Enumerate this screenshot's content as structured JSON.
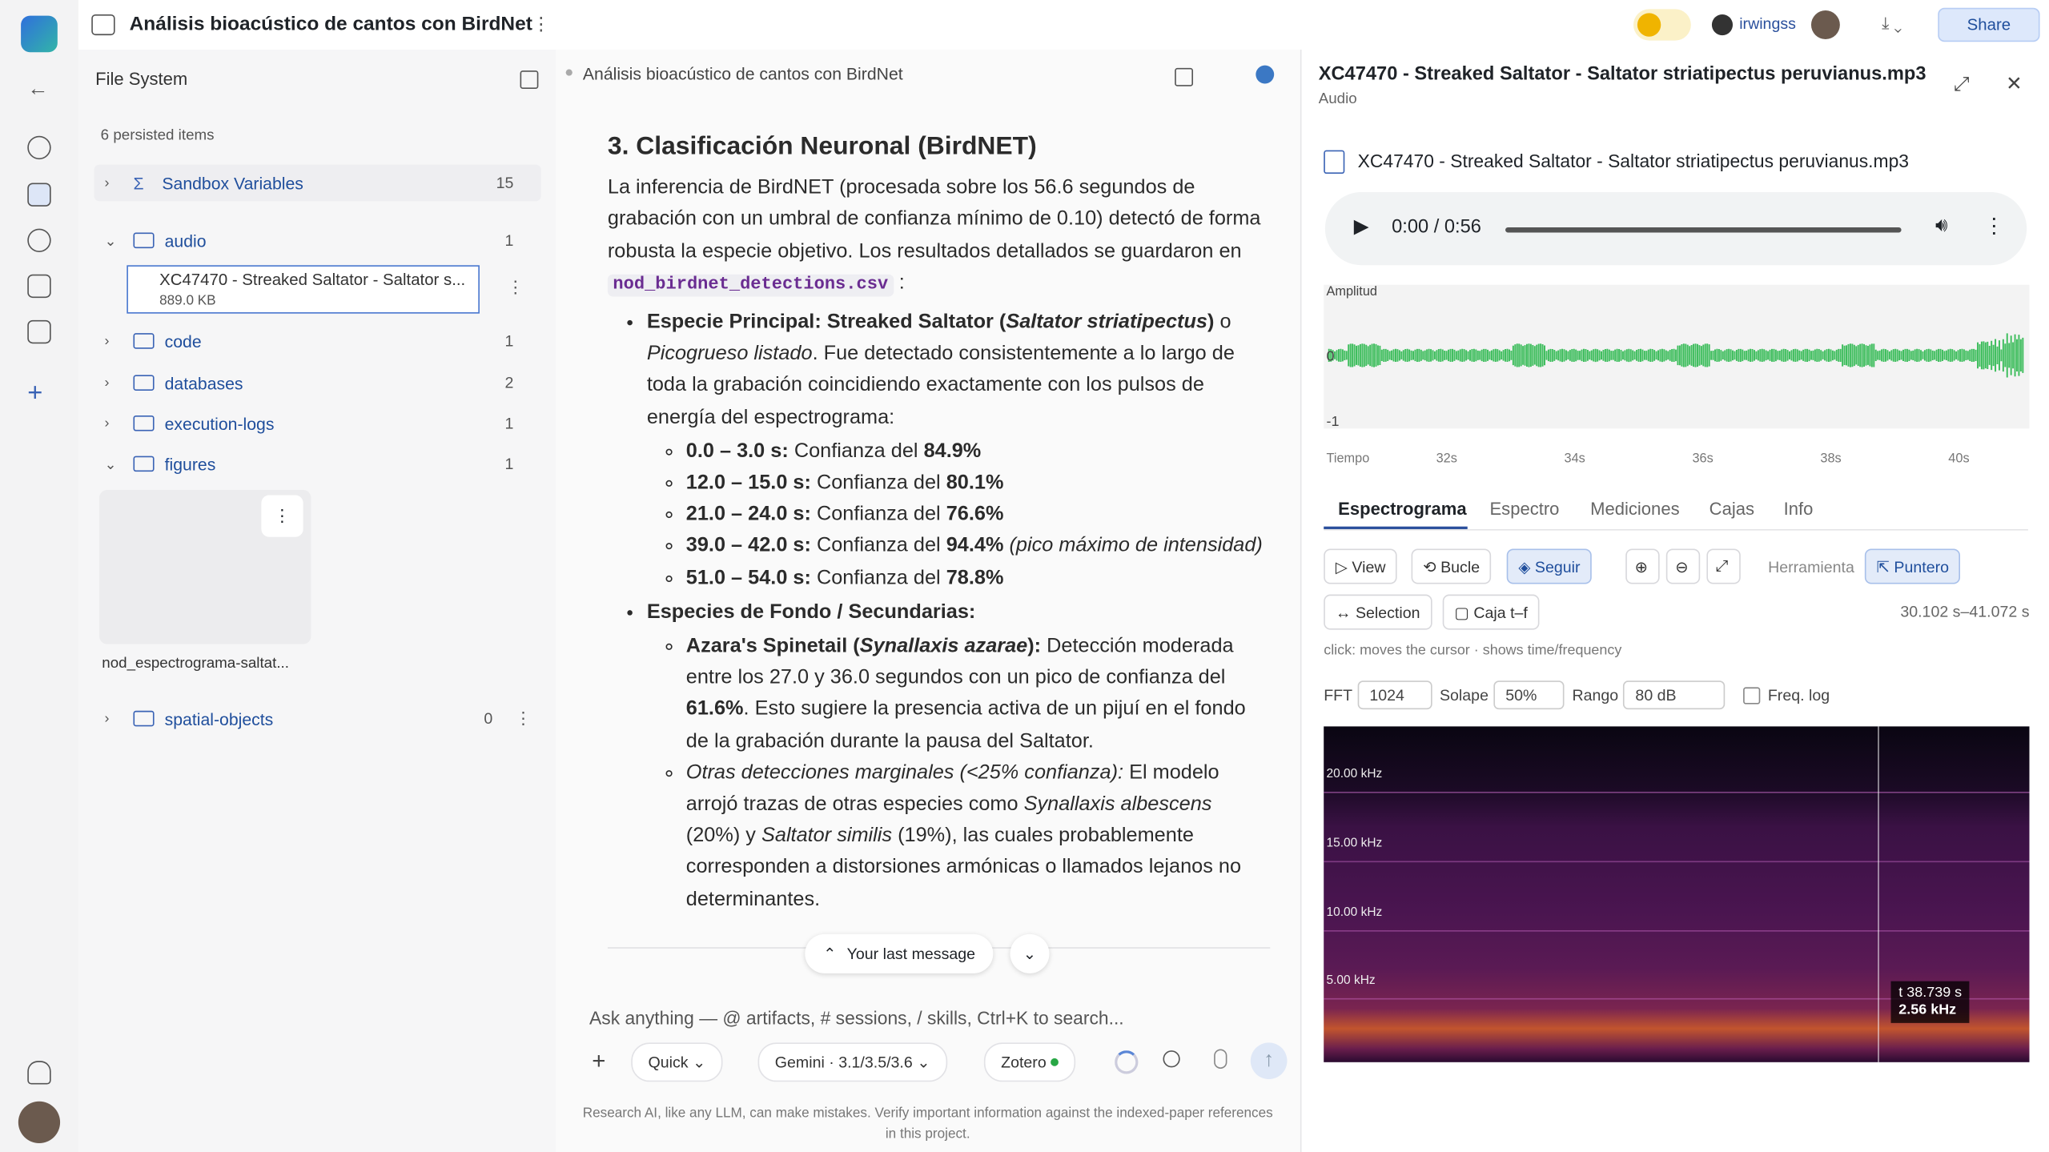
{
  "app": {
    "title": "Análisis bioacústico de cantos con BirdNet",
    "user": "irwingss",
    "share": "Share"
  },
  "file_system": {
    "title": "File System",
    "summary": "6 persisted items",
    "items": [
      {
        "name": "Sandbox Variables",
        "count": 15
      },
      {
        "name": "audio",
        "count": 1
      },
      {
        "name": "code",
        "count": 1
      },
      {
        "name": "databases",
        "count": 2
      },
      {
        "name": "execution-logs",
        "count": 1
      },
      {
        "name": "figures",
        "count": 1
      },
      {
        "name": "spatial-objects",
        "count": 0
      }
    ],
    "audio_file": {
      "name": "XC47470 - Streaked Saltator - Saltator s...",
      "size": "889.0 KB"
    },
    "figure_file": {
      "name": "nod_espectrograma-saltat..."
    }
  },
  "chat": {
    "breadcrumb": "Análisis bioacústico de cantos con BirdNet",
    "heading": "3. Clasificación Neuronal (BirdNET)",
    "intro": [
      "La inferencia de BirdNET (procesada sobre los 56.6 segundos de grabación con un umbral de confianza mínimo de 0.10) detectó de forma robusta la especie objetivo. Los resultados detallados se guardaron en",
      "nod_birdnet_detections.csv",
      ":"
    ],
    "main_species": [
      "Especie Principal: Streaked Saltator (",
      "Saltator striatipectus",
      ")",
      "o",
      "Picogrueso listado",
      ". Fue detectado consistentemente a lo largo de toda la grabación coincidiendo exactamente con los pulsos de energía del espectrograma:"
    ],
    "detections": [
      {
        "range": "0.0 – 3.0 s:",
        "text": "Confianza del",
        "value": "84.9%"
      },
      {
        "range": "12.0 – 15.0 s:",
        "text": "Confianza del",
        "value": "80.1%"
      },
      {
        "range": "21.0 – 24.0 s:",
        "text": "Confianza del",
        "value": "76.6%"
      },
      {
        "range": "39.0 – 42.0 s:",
        "text": "Confianza del",
        "value": "94.4%",
        "note": "(pico máximo de intensidad)"
      },
      {
        "range": "51.0 – 54.0 s:",
        "text": "Confianza del",
        "value": "78.8%"
      }
    ],
    "background_heading": "Especies de Fondo / Secundarias:",
    "azara": [
      "Azara's Spinetail (",
      "Synallaxis azarae",
      "):",
      "Detección moderada entre los 27.0 y 36.0 segundos con un pico de confianza del",
      "61.6%",
      ". Esto sugiere la presencia activa de un pijuí en el fondo de la grabación durante la pausa del Saltator."
    ],
    "others": [
      "Otras detecciones marginales (<25% confianza):",
      "El modelo arrojó trazas de otras especies como",
      "Synallaxis albescens",
      "(20%) y",
      "Saltator similis",
      "(19%), las cuales probablemente corresponden a distorsiones armónicas o llamados lejanos no determinantes."
    ],
    "last_message": "Your last message",
    "placeholder": "Ask anything — @ artifacts, # sessions, / skills, Ctrl+K to search...",
    "mode": "Quick",
    "model": "Gemini · 3.1/3.5/3.6",
    "integration": "Zotero",
    "disclaimer": "Research AI, like any LLM, can make mistakes. Verify important information against the indexed-paper references in this project."
  },
  "viewer": {
    "title": "XC47470 - Streaked Saltator - Saltator striatipectus peruvianus.mp3",
    "kind": "Audio",
    "file_name": "XC47470 - Streaked Saltator - Saltator striatipectus peruvianus.mp3",
    "time": "0:00 / 0:56",
    "waveform": {
      "y_label": "Amplitud",
      "y_ticks": [
        "0",
        "-1"
      ],
      "x_label": "Tiempo",
      "x_ticks": [
        "32s",
        "34s",
        "36s",
        "38s",
        "40s"
      ]
    },
    "tabs": [
      "Espectrograma",
      "Espectro",
      "Mediciones",
      "Cajas",
      "Info"
    ],
    "tools": [
      "View",
      "Bucle",
      "Seguir"
    ],
    "tool_label": "Herramienta",
    "pointer": "Puntero",
    "modes": [
      "Selection",
      "Caja t–f"
    ],
    "range": "30.102 s–41.072 s",
    "hint": "click: moves the cursor · shows time/frequency",
    "settings": {
      "fft_label": "FFT",
      "fft": "1024",
      "overlap_label": "Solape",
      "overlap": "50%",
      "range_label": "Rango",
      "range": "80 dB",
      "log_label": "Freq. log"
    },
    "spectrogram": {
      "freq_labels": [
        "20.00 kHz",
        "15.00 kHz",
        "10.00 kHz",
        "5.00 kHz"
      ],
      "cursor_time": "t 38.739 s",
      "cursor_freq": "2.56 kHz"
    }
  }
}
